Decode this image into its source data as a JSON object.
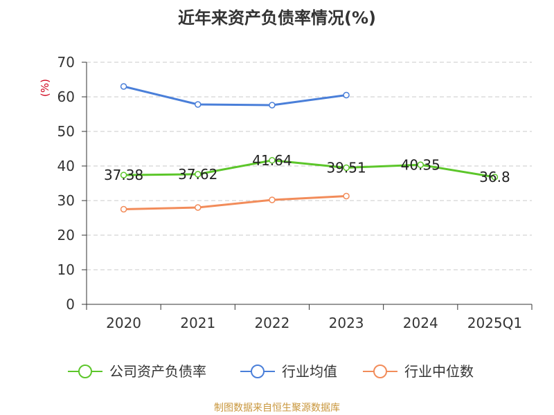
{
  "chart_data": {
    "type": "line",
    "title": "近年来资产负债率情况(%)",
    "ylabel": "(%)",
    "xlabel": "",
    "categories": [
      "2020",
      "2021",
      "2022",
      "2023",
      "2024",
      "2025Q1"
    ],
    "ylim": [
      0,
      70
    ],
    "yticks": [
      "0",
      "10",
      "20",
      "30",
      "40",
      "50",
      "60",
      "70"
    ],
    "grid": true,
    "legend_position": "bottom",
    "series": [
      {
        "name": "公司资产负债率",
        "color": "#5cc62a",
        "values": [
          37.38,
          37.62,
          41.64,
          39.51,
          40.35,
          36.8
        ],
        "labels": [
          "37.38",
          "37.62",
          "41.64",
          "39.51",
          "40.35",
          "36.8"
        ]
      },
      {
        "name": "行业均值",
        "color": "#4a7fd9",
        "values": [
          63.0,
          57.8,
          57.6,
          60.5,
          null,
          null
        ]
      },
      {
        "name": "行业中位数",
        "color": "#f28c5a",
        "values": [
          27.5,
          28.0,
          30.2,
          31.3,
          null,
          null
        ]
      }
    ]
  },
  "source": "制图数据来自恒生聚源数据库"
}
